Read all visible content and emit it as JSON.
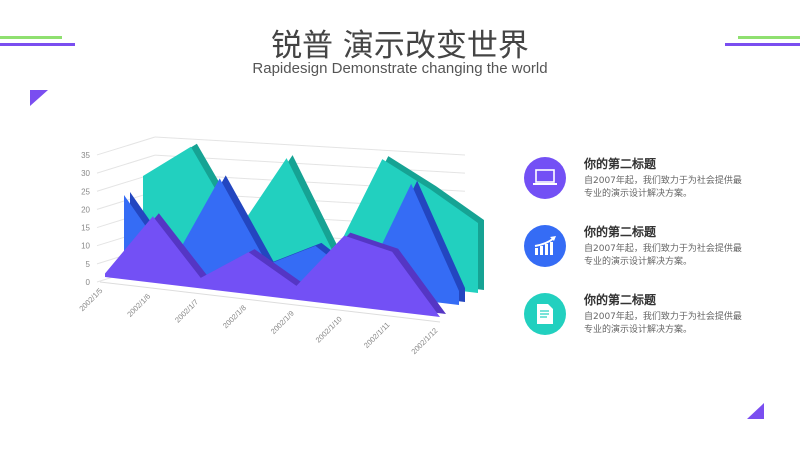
{
  "header": {
    "title": "锐普 演示改变世界",
    "subtitle": "Rapidesign Demonstrate changing the world"
  },
  "colors": {
    "purple": "#7350f5",
    "blue": "#356cf5",
    "teal": "#22d0bf",
    "green": "#8fe070",
    "accent": "#7a4ef0"
  },
  "chart_data": {
    "type": "area",
    "subtype": "3d",
    "categories": [
      "2002/1/5",
      "2002/1/6",
      "2002/1/7",
      "2002/1/8",
      "2002/1/9",
      "2002/1/10",
      "2002/1/11",
      "2002/1/12"
    ],
    "yticks": [
      "0",
      "5",
      "10",
      "15",
      "20",
      "25",
      "30",
      "35"
    ],
    "ylim": [
      0,
      35
    ],
    "grid": true,
    "series": [
      {
        "color": "#22d0bf",
        "values": [
          22,
          32,
          10,
          32,
          6,
          35,
          28,
          20
        ]
      },
      {
        "color": "#356cf5",
        "values": [
          20,
          2,
          28,
          5,
          12,
          3,
          33,
          4
        ]
      },
      {
        "color": "#7350f5",
        "values": [
          1,
          19,
          3,
          12,
          4,
          20,
          17,
          0
        ]
      }
    ]
  },
  "items": [
    {
      "icon": "laptop-icon",
      "color": "#7350f5",
      "title": "你的第二标题",
      "text": "自2007年起，我们致力于为社会提供最专业的演示设计解决方案。"
    },
    {
      "icon": "growth-chart-icon",
      "color": "#356cf5",
      "title": "你的第二标题",
      "text": "自2007年起，我们致力于为社会提供最专业的演示设计解决方案。"
    },
    {
      "icon": "document-icon",
      "color": "#22d0bf",
      "title": "你的第二标题",
      "text": "自2007年起，我们致力于为社会提供最专业的演示设计解决方案。"
    }
  ]
}
